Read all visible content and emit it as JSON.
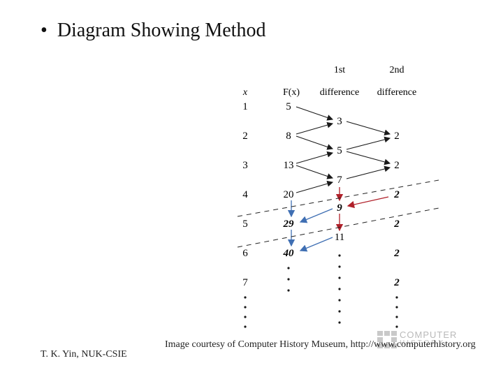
{
  "slide": {
    "bullet": "•",
    "title": "Diagram Showing Method",
    "footer_left": "T. K. Yin, NUK-CSIE",
    "footer_right": "Image courtesy of Computer History Museum, http://www.computerhistory.org"
  },
  "logo": {
    "line1": "COMPUTER",
    "line2": "HISTORY"
  },
  "diagram": {
    "headers": {
      "x": "x",
      "fx": "F(x)",
      "first_top": "1st",
      "first_bottom": "difference",
      "second_top": "2nd",
      "second_bottom": "difference"
    },
    "x_values": [
      "1",
      "2",
      "3",
      "4",
      "5",
      "6",
      "7"
    ],
    "fx_values": [
      "5",
      "8",
      "13",
      "20",
      "29",
      "40"
    ],
    "first_diff": [
      "3",
      "5",
      "7",
      "9",
      "11"
    ],
    "second_diff": [
      "2",
      "2",
      "2",
      "2",
      "2",
      "2",
      "2"
    ],
    "colors": {
      "ink": "#1a1a1a",
      "red_arrow": "#b0202a",
      "blue_arrow": "#3f6fb3",
      "dash": "#222222"
    }
  }
}
